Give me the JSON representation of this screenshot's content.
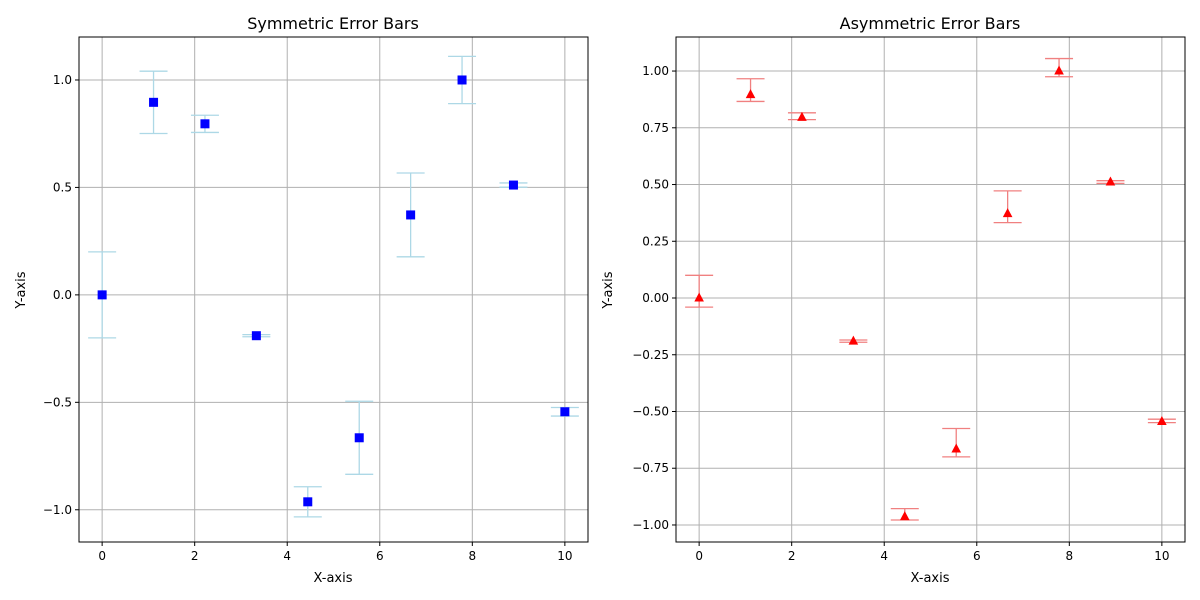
{
  "chart_data": [
    {
      "type": "scatter",
      "title": "Symmetric Error Bars",
      "xlabel": "X-axis",
      "ylabel": "Y-axis",
      "xlim": [
        -0.5,
        10.5
      ],
      "ylim": [
        -1.15,
        1.2
      ],
      "xticks": [
        0,
        2,
        4,
        6,
        8,
        10
      ],
      "xtick_labels": [
        "0",
        "2",
        "4",
        "6",
        "8",
        "10"
      ],
      "yticks": [
        -1.0,
        -0.5,
        0.0,
        0.5,
        1.0
      ],
      "ytick_labels": [
        "−1.0",
        "−0.5",
        "0.0",
        "0.5",
        "1.0"
      ],
      "grid": true,
      "marker": "square",
      "marker_color": "#0000ff",
      "errorbar_color": "#add8e6",
      "series": [
        {
          "x": [
            0.0,
            1.111,
            2.222,
            3.333,
            4.444,
            5.556,
            6.667,
            7.778,
            8.889,
            10.0
          ],
          "y": [
            0.0,
            0.896,
            0.796,
            -0.19,
            -0.963,
            -0.665,
            0.372,
            1.0,
            0.511,
            -0.544
          ],
          "yerr_lower": [
            0.2,
            0.145,
            0.04,
            0.005,
            0.07,
            0.17,
            0.195,
            0.11,
            0.01,
            0.02
          ],
          "yerr_upper": [
            0.2,
            0.145,
            0.04,
            0.005,
            0.07,
            0.17,
            0.195,
            0.11,
            0.01,
            0.02
          ]
        }
      ]
    },
    {
      "type": "scatter",
      "title": "Asymmetric Error Bars",
      "xlabel": "X-axis",
      "ylabel": "Y-axis",
      "xlim": [
        -0.5,
        10.5
      ],
      "ylim": [
        -1.075,
        1.15
      ],
      "xticks": [
        0,
        2,
        4,
        6,
        8,
        10
      ],
      "xtick_labels": [
        "0",
        "2",
        "4",
        "6",
        "8",
        "10"
      ],
      "yticks": [
        -1.0,
        -0.75,
        -0.5,
        -0.25,
        0.0,
        0.25,
        0.5,
        0.75,
        1.0
      ],
      "ytick_labels": [
        "−1.00",
        "−0.75",
        "−0.50",
        "−0.25",
        "0.00",
        "0.25",
        "0.50",
        "0.75",
        "1.00"
      ],
      "grid": true,
      "marker": "triangle",
      "marker_color": "#ff0000",
      "errorbar_color": "#f08080",
      "series": [
        {
          "x": [
            0.0,
            1.111,
            2.222,
            3.333,
            4.444,
            5.556,
            6.667,
            7.778,
            8.889,
            10.0
          ],
          "y": [
            0.0,
            0.896,
            0.796,
            -0.19,
            -0.963,
            -0.665,
            0.372,
            1.0,
            0.511,
            -0.544
          ],
          "yerr_lower": [
            0.04,
            0.03,
            0.01,
            0.005,
            0.015,
            0.035,
            0.04,
            0.025,
            0.006,
            0.005
          ],
          "yerr_upper": [
            0.1,
            0.07,
            0.02,
            0.005,
            0.035,
            0.09,
            0.1,
            0.055,
            0.006,
            0.01
          ]
        }
      ]
    }
  ]
}
